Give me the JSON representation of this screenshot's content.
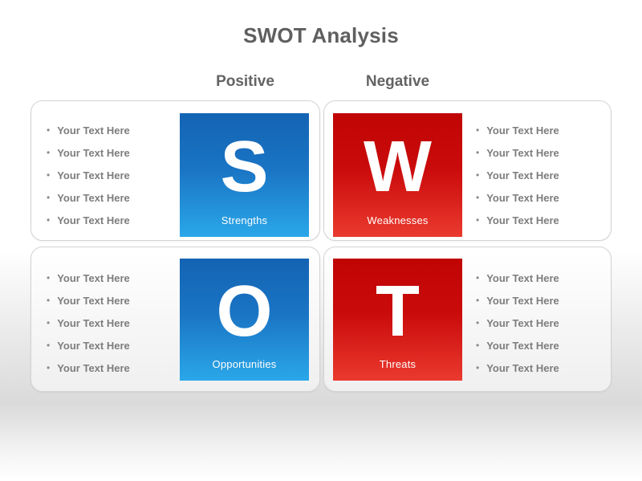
{
  "title": "SWOT Analysis",
  "column_headers": {
    "positive": "Positive",
    "negative": "Negative"
  },
  "bullet_marker": "•",
  "colors": {
    "blue_gradient_top": "#1463b3",
    "blue_gradient_bottom": "#2aa7e9",
    "red_gradient_top": "#c00404",
    "red_gradient_bottom": "#ea3a2e",
    "heading_text": "#5f5f5f",
    "bullet_text": "#7d7d7d"
  },
  "quadrants": [
    {
      "key": "strengths",
      "letter": "S",
      "label": "Strengths",
      "theme": "blue",
      "list_side": "left",
      "bullets": [
        "Your Text Here",
        "Your Text Here",
        "Your Text Here",
        "Your Text Here",
        "Your Text Here"
      ]
    },
    {
      "key": "weaknesses",
      "letter": "W",
      "label": "Weaknesses",
      "theme": "red",
      "list_side": "right",
      "bullets": [
        "Your Text Here",
        "Your Text Here",
        "Your Text Here",
        "Your Text Here",
        "Your Text Here"
      ]
    },
    {
      "key": "opportunities",
      "letter": "O",
      "label": "Opportunities",
      "theme": "blue",
      "list_side": "left",
      "bullets": [
        "Your Text Here",
        "Your Text Here",
        "Your Text Here",
        "Your Text Here",
        "Your Text Here"
      ]
    },
    {
      "key": "threats",
      "letter": "T",
      "label": "Threats",
      "theme": "red",
      "list_side": "right",
      "bullets": [
        "Your Text Here",
        "Your Text Here",
        "Your Text Here",
        "Your Text Here",
        "Your Text Here"
      ]
    }
  ]
}
